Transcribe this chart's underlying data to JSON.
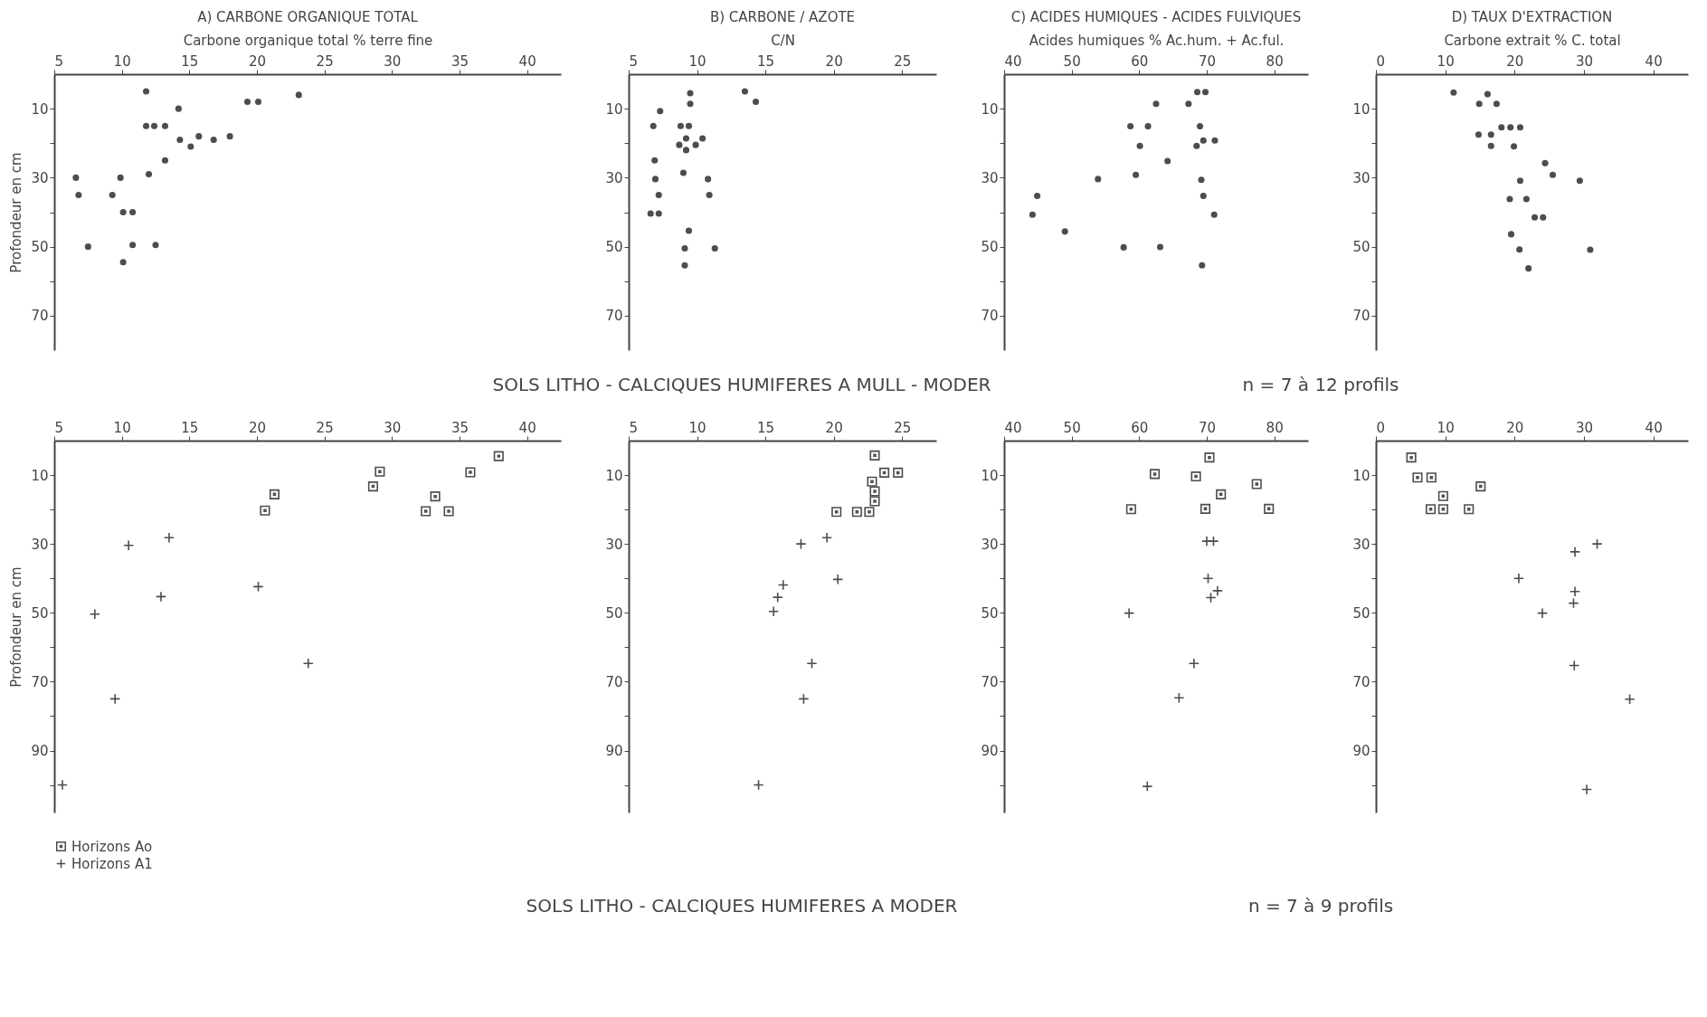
{
  "chart_data": [
    {
      "type": "scatter",
      "title": "A) CARBONE ORGANIQUE TOTAL",
      "xlabel": "Carbone organique total % terre fine",
      "ylabel": "Profondeur   en cm",
      "xlim": [
        5,
        42.5
      ],
      "xticks": [
        5,
        10,
        15,
        20,
        25,
        30,
        35,
        40
      ],
      "ylim": [
        80,
        0
      ],
      "yticks": [
        10,
        {
          "value": 20,
          "label": null
        },
        30,
        {
          "value": 40,
          "label": null
        },
        50,
        {
          "value": 60,
          "label": null
        },
        70
      ],
      "marker": "circle",
      "grid": false,
      "annotations": [
        "SOLS LITHO - CALCIQUES HUMIFERES A MULL - MODER",
        "n = 7 à 12 profils"
      ],
      "series": [
        {
          "color": "#4d4d4d",
          "x": [
            11.8,
            19.3,
            20.1,
            23.1,
            14.2,
            11.8,
            12.4,
            13.2,
            14.3,
            15.1,
            15.7,
            16.8,
            18.0,
            13.2,
            12.0,
            6.6,
            9.9,
            6.8,
            9.3,
            10.1,
            10.8,
            7.5,
            10.8,
            12.5,
            10.1
          ],
          "values": [
            5,
            8,
            8,
            6,
            10,
            15,
            15,
            15,
            19,
            21,
            18,
            19,
            18,
            25,
            29,
            30,
            30,
            35,
            35,
            40,
            40,
            50,
            49.5,
            49.5,
            54.5
          ]
        }
      ]
    },
    {
      "type": "scatter",
      "title": "B) CARBONE / AZOTE",
      "xlabel": "C/N",
      "xlim": [
        5,
        27.5
      ],
      "xticks": [
        5,
        10,
        15,
        20,
        25
      ],
      "ylim": [
        80,
        0
      ],
      "yticks": [
        10,
        {
          "value": 20,
          "label": null
        },
        30,
        {
          "value": 40,
          "label": null
        },
        50,
        {
          "value": 60,
          "label": null
        },
        70
      ],
      "marker": "circle",
      "grid": false,
      "series": [
        {
          "color": "#4d4d4d",
          "x": [
            9.5,
            9.5,
            13.5,
            14.3,
            7.3,
            6.8,
            8.8,
            9.4,
            9.2,
            10.4,
            8.7,
            9.9,
            9.2,
            6.9,
            9.0,
            6.95,
            10.8,
            7.2,
            10.9,
            6.6,
            7.2,
            9.4,
            9.1,
            11.3,
            9.1
          ],
          "values": [
            5.5,
            8.6,
            5,
            8,
            10.7,
            15,
            15,
            15,
            18.6,
            18.6,
            20.5,
            20.5,
            22,
            25,
            28.6,
            30.4,
            30.4,
            35,
            35,
            40.4,
            40.4,
            45.4,
            50.5,
            50.5,
            55.4
          ]
        }
      ]
    },
    {
      "type": "scatter",
      "title": "C) ACIDES HUMIQUES - ACIDES FULVIQUES",
      "xlabel": "Acides humiques % Ac.hum. + Ac.ful.",
      "xlim": [
        40,
        85
      ],
      "xticks": [
        40,
        50,
        60,
        70,
        80
      ],
      "ylim": [
        80,
        0
      ],
      "yticks": [
        10,
        {
          "value": 20,
          "label": null
        },
        30,
        {
          "value": 40,
          "label": null
        },
        50,
        {
          "value": 60,
          "label": null
        },
        70
      ],
      "marker": "circle",
      "grid": false,
      "series": [
        {
          "color": "#4d4d4d",
          "x": [
            68.6,
            69.8,
            62.5,
            67.3,
            58.7,
            61.3,
            69.0,
            60.1,
            68.5,
            69.5,
            71.2,
            64.2,
            59.5,
            53.9,
            69.2,
            44.9,
            69.5,
            44.2,
            71.1,
            49.0,
            57.7,
            63.1,
            69.3
          ],
          "values": [
            5.2,
            5.2,
            8.6,
            8.6,
            15.1,
            15.1,
            15.1,
            20.8,
            20.8,
            19.2,
            19.2,
            25.2,
            29.2,
            30.4,
            30.6,
            35.3,
            35.3,
            40.7,
            40.7,
            45.6,
            50.2,
            50.1,
            55.4
          ]
        }
      ]
    },
    {
      "type": "scatter",
      "title": "D) TAUX D'EXTRACTION",
      "xlabel": "Carbone extrait % C. total",
      "xlim": [
        0,
        45
      ],
      "xticks": [
        0,
        10,
        20,
        30,
        40
      ],
      "ylim": [
        80,
        0
      ],
      "yticks": [
        10,
        {
          "value": 20,
          "label": null
        },
        30,
        {
          "value": 40,
          "label": null
        },
        50,
        {
          "value": 60,
          "label": null
        },
        70
      ],
      "marker": "circle",
      "grid": false,
      "series": [
        {
          "color": "#4d4d4d",
          "x": [
            11.2,
            16.1,
            14.9,
            17.4,
            18.1,
            19.4,
            20.8,
            14.8,
            16.6,
            16.6,
            19.9,
            24.4,
            25.5,
            29.4,
            20.8,
            19.3,
            21.7,
            22.9,
            24.1,
            19.5,
            20.7,
            30.9,
            22.0
          ],
          "values": [
            5.3,
            5.8,
            8.6,
            8.6,
            15.4,
            15.4,
            15.4,
            17.5,
            17.5,
            20.8,
            20.9,
            25.8,
            29.2,
            30.9,
            30.9,
            36.2,
            36.2,
            41.5,
            41.5,
            46.4,
            50.8,
            50.9,
            56.3
          ]
        }
      ]
    },
    {
      "type": "scatter",
      "ylabel": "Profondeur   en cm",
      "xlim": [
        5,
        42.5
      ],
      "xticks": [
        5,
        10,
        15,
        20,
        25,
        30,
        35,
        40
      ],
      "ylim": [
        108,
        0
      ],
      "yticks": [
        10,
        {
          "value": 20,
          "label": null
        },
        30,
        {
          "value": 40,
          "label": null
        },
        50,
        {
          "value": 60,
          "label": null
        },
        70,
        {
          "value": 80,
          "label": null
        },
        90,
        {
          "value": 100,
          "label": null
        }
      ],
      "grid": false,
      "legend": "bottom left",
      "annotations": [
        "SOLS LITHO - CALCIQUES HUMIFERES A MODER",
        "n = 7 à 9 profils"
      ],
      "series": [
        {
          "name": "Horizons Ao",
          "color": "#4d4d4d",
          "marker": "square",
          "x": [
            37.9,
            29.1,
            28.6,
            35.8,
            21.3,
            20.6,
            33.2,
            32.5,
            34.2
          ],
          "values": [
            4.5,
            9,
            13.3,
            9.2,
            15.6,
            20.3,
            16.2,
            20.5,
            20.5
          ]
        },
        {
          "name": "Horizons A1",
          "color": "#4d4d4d",
          "marker": "cross",
          "x": [
            10.5,
            13.5,
            12.9,
            8.0,
            20.1,
            23.8,
            9.5,
            5.6
          ],
          "values": [
            30.4,
            28.2,
            45.3,
            50.4,
            42.4,
            64.7,
            75.0,
            100
          ]
        }
      ]
    },
    {
      "type": "scatter",
      "xlim": [
        5,
        27.5
      ],
      "xticks": [
        5,
        10,
        15,
        20,
        25
      ],
      "ylim": [
        108,
        0
      ],
      "yticks": [
        10,
        {
          "value": 20,
          "label": null
        },
        30,
        {
          "value": 40,
          "label": null
        },
        50,
        {
          "value": 60,
          "label": null
        },
        70,
        {
          "value": 80,
          "label": null
        },
        90,
        {
          "value": 100,
          "label": null
        }
      ],
      "grid": false,
      "series": [
        {
          "color": "#4d4d4d",
          "marker": "square",
          "x": [
            23.0,
            23.7,
            24.7,
            22.8,
            23.0,
            23.0,
            20.2,
            21.7,
            22.6
          ],
          "values": [
            4.3,
            9.3,
            9.3,
            11.9,
            14.7,
            17.6,
            20.7,
            20.7,
            20.7
          ]
        },
        {
          "color": "#4d4d4d",
          "marker": "cross",
          "x": [
            17.6,
            19.5,
            16.3,
            15.9,
            15.6,
            20.3,
            18.4,
            17.8,
            14.5
          ],
          "values": [
            30,
            28.2,
            41.9,
            45.5,
            49.6,
            40.3,
            64.7,
            75,
            100
          ]
        }
      ]
    },
    {
      "type": "scatter",
      "xlim": [
        40,
        85
      ],
      "xticks": [
        40,
        50,
        60,
        70,
        80
      ],
      "ylim": [
        108,
        0
      ],
      "yticks": [
        10,
        {
          "value": 20,
          "label": null
        },
        30,
        {
          "value": 40,
          "label": null
        },
        50,
        {
          "value": 60,
          "label": null
        },
        70,
        {
          "value": 80,
          "label": null
        },
        90,
        {
          "value": 100,
          "label": null
        }
      ],
      "grid": false,
      "series": [
        {
          "color": "#4d4d4d",
          "marker": "square",
          "x": [
            70.4,
            62.3,
            68.4,
            77.4,
            72.1,
            58.8,
            69.8,
            79.2
          ],
          "values": [
            4.9,
            9.7,
            10.4,
            12.6,
            15.6,
            19.9,
            19.8,
            19.8
          ]
        },
        {
          "color": "#4d4d4d",
          "marker": "cross",
          "x": [
            70.0,
            71.0,
            70.2,
            71.6,
            70.6,
            58.5,
            68.1,
            65.9,
            61.2
          ],
          "values": [
            29.2,
            29.2,
            40,
            43.6,
            45.6,
            50.1,
            64.7,
            74.7,
            100.4
          ]
        }
      ]
    },
    {
      "type": "scatter",
      "xlim": [
        0,
        45
      ],
      "xticks": [
        0,
        10,
        20,
        30,
        40
      ],
      "ylim": [
        108,
        0
      ],
      "yticks": [
        10,
        {
          "value": 20,
          "label": null
        },
        30,
        {
          "value": 40,
          "label": null
        },
        50,
        {
          "value": 60,
          "label": null
        },
        70,
        {
          "value": 80,
          "label": null
        },
        90,
        {
          "value": 100,
          "label": null
        }
      ],
      "grid": false,
      "series": [
        {
          "color": "#4d4d4d",
          "marker": "square",
          "x": [
            5.1,
            6.0,
            8.0,
            15.1,
            9.7,
            7.9,
            9.7,
            13.4
          ],
          "values": [
            4.9,
            10.7,
            10.7,
            13.3,
            16.1,
            19.9,
            19.9,
            19.9
          ]
        },
        {
          "color": "#4d4d4d",
          "marker": "cross",
          "x": [
            31.9,
            28.7,
            20.6,
            28.7,
            28.5,
            24.0,
            28.6,
            36.6,
            30.4
          ],
          "values": [
            30,
            32.3,
            40,
            43.8,
            47.2,
            50.1,
            65.3,
            75.1,
            101.3
          ]
        }
      ]
    }
  ]
}
